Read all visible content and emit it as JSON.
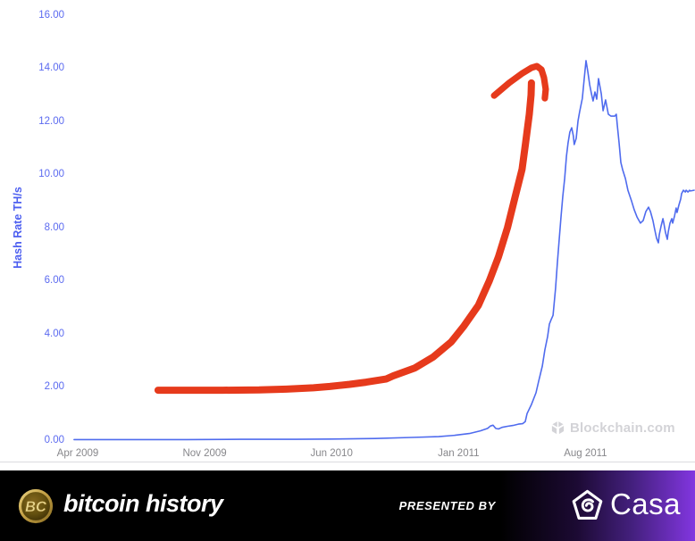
{
  "chart_data": {
    "type": "line",
    "title": "",
    "ylabel": "Hash Rate TH/s",
    "grid": false,
    "legend": false,
    "x_axis": {
      "unit": "months_since_apr_2009",
      "ticks": [
        {
          "m": 0,
          "label": "Apr 2009"
        },
        {
          "m": 7,
          "label": "Nov 2009"
        },
        {
          "m": 14,
          "label": "Jun 2010"
        },
        {
          "m": 21,
          "label": "Jan 2011"
        },
        {
          "m": 28,
          "label": "Aug 2011"
        }
      ]
    },
    "y_axis": {
      "min": 0,
      "max": 16,
      "ticks": [
        {
          "v": 0,
          "label": "0.00"
        },
        {
          "v": 2,
          "label": "2.00"
        },
        {
          "v": 4,
          "label": "4.00"
        },
        {
          "v": 6,
          "label": "6.00"
        },
        {
          "v": 8,
          "label": "8.00"
        },
        {
          "v": 10,
          "label": "10.00"
        },
        {
          "v": 12,
          "label": "12.00"
        },
        {
          "v": 14,
          "label": "14.00"
        },
        {
          "v": 16,
          "label": "16.00"
        }
      ]
    },
    "series": [
      {
        "name": "Bitcoin network hash rate (TH/s)",
        "color": "#4f6bee",
        "width": 1.6,
        "points": [
          [
            -0.2,
            0.02
          ],
          [
            3,
            0.02
          ],
          [
            6,
            0.02
          ],
          [
            9,
            0.03
          ],
          [
            12,
            0.03
          ],
          [
            14,
            0.04
          ],
          [
            16.4,
            0.06
          ],
          [
            18.4,
            0.1
          ],
          [
            19.9,
            0.13
          ],
          [
            20.8,
            0.18
          ],
          [
            21.6,
            0.25
          ],
          [
            22.2,
            0.35
          ],
          [
            22.6,
            0.44
          ],
          [
            22.76,
            0.53
          ],
          [
            22.9,
            0.56
          ],
          [
            23.05,
            0.44
          ],
          [
            23.2,
            0.42
          ],
          [
            23.4,
            0.48
          ],
          [
            23.7,
            0.52
          ],
          [
            24,
            0.55
          ],
          [
            24.3,
            0.6
          ],
          [
            24.53,
            0.62
          ],
          [
            24.68,
            0.7
          ],
          [
            24.78,
            1.0
          ],
          [
            25.02,
            1.34
          ],
          [
            25.27,
            1.78
          ],
          [
            25.42,
            2.22
          ],
          [
            25.62,
            2.79
          ],
          [
            25.76,
            3.39
          ],
          [
            25.91,
            3.9
          ],
          [
            26.01,
            4.37
          ],
          [
            26.11,
            4.54
          ],
          [
            26.21,
            4.7
          ],
          [
            26.35,
            5.71
          ],
          [
            26.45,
            6.66
          ],
          [
            26.55,
            7.56
          ],
          [
            26.65,
            8.4
          ],
          [
            26.75,
            9.18
          ],
          [
            26.85,
            9.85
          ],
          [
            26.95,
            10.69
          ],
          [
            27.04,
            11.19
          ],
          [
            27.14,
            11.6
          ],
          [
            27.24,
            11.76
          ],
          [
            27.33,
            11.46
          ],
          [
            27.38,
            11.13
          ],
          [
            27.49,
            11.36
          ],
          [
            27.59,
            12.03
          ],
          [
            27.68,
            12.37
          ],
          [
            27.83,
            12.87
          ],
          [
            27.93,
            13.61
          ],
          [
            28.03,
            14.29
          ],
          [
            28.13,
            13.88
          ],
          [
            28.23,
            13.38
          ],
          [
            28.33,
            13.04
          ],
          [
            28.42,
            12.77
          ],
          [
            28.52,
            13.11
          ],
          [
            28.62,
            12.84
          ],
          [
            28.72,
            13.61
          ],
          [
            28.87,
            13.04
          ],
          [
            28.97,
            12.4
          ],
          [
            29.11,
            12.81
          ],
          [
            29.26,
            12.27
          ],
          [
            29.41,
            12.2
          ],
          [
            29.61,
            12.2
          ],
          [
            29.7,
            12.27
          ],
          [
            29.75,
            11.9
          ],
          [
            29.85,
            11.2
          ],
          [
            29.95,
            10.45
          ],
          [
            30.05,
            10.18
          ],
          [
            30.2,
            9.85
          ],
          [
            30.34,
            9.41
          ],
          [
            30.54,
            9.0
          ],
          [
            30.69,
            8.67
          ],
          [
            30.84,
            8.4
          ],
          [
            31.03,
            8.17
          ],
          [
            31.18,
            8.27
          ],
          [
            31.33,
            8.61
          ],
          [
            31.48,
            8.77
          ],
          [
            31.58,
            8.61
          ],
          [
            31.72,
            8.27
          ],
          [
            31.82,
            7.93
          ],
          [
            31.92,
            7.6
          ],
          [
            32.02,
            7.43
          ],
          [
            32.07,
            7.73
          ],
          [
            32.17,
            8.07
          ],
          [
            32.27,
            8.34
          ],
          [
            32.32,
            8.17
          ],
          [
            32.41,
            7.83
          ],
          [
            32.51,
            7.56
          ],
          [
            32.56,
            7.83
          ],
          [
            32.66,
            8.17
          ],
          [
            32.76,
            8.34
          ],
          [
            32.81,
            8.17
          ],
          [
            32.91,
            8.44
          ],
          [
            33,
            8.74
          ],
          [
            33.05,
            8.57
          ],
          [
            33.15,
            8.84
          ],
          [
            33.25,
            9.08
          ],
          [
            33.3,
            9.28
          ],
          [
            33.4,
            9.41
          ],
          [
            33.5,
            9.34
          ],
          [
            33.55,
            9.41
          ],
          [
            33.65,
            9.34
          ],
          [
            33.74,
            9.41
          ],
          [
            33.79,
            9.38
          ],
          [
            33.99,
            9.41
          ]
        ]
      }
    ],
    "annotation": {
      "name": "hand-drawn growth arrow",
      "color": "#e63a1c",
      "shaft_width": 8,
      "head_width": 7.2,
      "shaft": [
        [
          4.43,
          1.88
        ],
        [
          6,
          1.88
        ],
        [
          8,
          1.88
        ],
        [
          10,
          1.89
        ],
        [
          11.5,
          1.92
        ],
        [
          13,
          1.97
        ],
        [
          13.9,
          2.02
        ],
        [
          15,
          2.1
        ],
        [
          15.9,
          2.18
        ],
        [
          17,
          2.3
        ],
        [
          17.4,
          2.42
        ],
        [
          18.6,
          2.72
        ],
        [
          19.6,
          3.13
        ],
        [
          20.6,
          3.7
        ],
        [
          21.3,
          4.3
        ],
        [
          22.1,
          5.08
        ],
        [
          22.7,
          6.0
        ],
        [
          23.2,
          6.9
        ],
        [
          23.7,
          8.0
        ],
        [
          24.1,
          9.1
        ],
        [
          24.5,
          10.2
        ],
        [
          24.7,
          11.2
        ],
        [
          24.9,
          12.27
        ],
        [
          25,
          13.0
        ],
        [
          25.02,
          13.45
        ]
      ],
      "head": [
        [
          22.96,
          12.97
        ],
        [
          23.79,
          13.45
        ],
        [
          24.53,
          13.82
        ],
        [
          25.02,
          14.02
        ],
        [
          25.32,
          14.08
        ],
        [
          25.57,
          13.95
        ],
        [
          25.71,
          13.65
        ],
        [
          25.81,
          13.21
        ],
        [
          25.76,
          12.87
        ]
      ]
    }
  },
  "watermark": {
    "text": "Blockchain.com",
    "color": "#d3d3d7"
  },
  "footer": {
    "coin_text": "BC",
    "brand": "bitcoin history",
    "presented_by": "PRESENTED BY",
    "partner": "Casa",
    "accent": "#8236e0"
  }
}
